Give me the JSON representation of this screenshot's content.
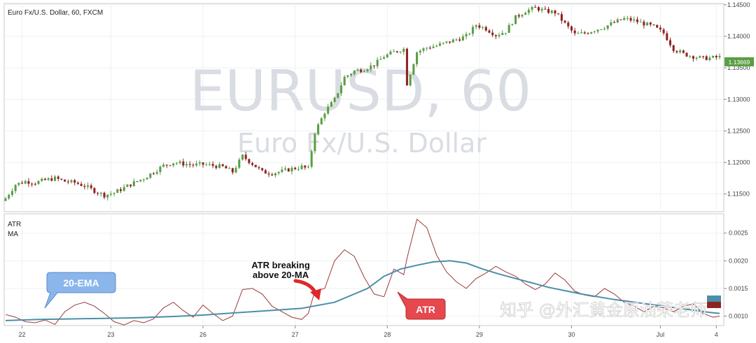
{
  "window": {
    "title": "Euro Fx/U.S. Dollar, 60, FXCM"
  },
  "watermark": {
    "line1": "EURUSD, 60",
    "line2": "Euro Fx/U.S. Dollar"
  },
  "overlay_text": "知乎 @外汇黄金原油荣老师",
  "colors": {
    "up_candle": "#5a9e44",
    "down_candle": "#8e2422",
    "atr_line": "#9b3a3a",
    "ema_line": "#4b8fa8",
    "price_badge": "#5a9e44",
    "callout_blue": "#8ab6ec",
    "callout_red": "#e5484d",
    "arrow_red": "#e0262a"
  },
  "price_badge": "1.13669",
  "callouts": {
    "ema": "20-EMA",
    "atr": "ATR",
    "breakout_line1": "ATR breaking",
    "breakout_line2": "above 20-MA"
  },
  "chart_data": [
    {
      "type": "candlestick",
      "title": "Euro Fx/U.S. Dollar, 60, FXCM",
      "y_ticks": [
        "1.14500",
        "1.14000",
        "1.13500",
        "1.13000",
        "1.12500",
        "1.12000",
        "1.11500"
      ],
      "ylim": [
        1.1122,
        1.1452
      ],
      "x_ticks": [
        "22",
        "23",
        "26",
        "27",
        "28",
        "29",
        "30",
        "Jul",
        "4"
      ],
      "grid": true,
      "close_path": [
        [
          0,
          1.1143
        ],
        [
          3,
          1.1165
        ],
        [
          6,
          1.117
        ],
        [
          9,
          1.1168
        ],
        [
          12,
          1.1172
        ],
        [
          15,
          1.1175
        ],
        [
          18,
          1.117
        ],
        [
          21,
          1.1168
        ],
        [
          24,
          1.1163
        ],
        [
          27,
          1.1155
        ],
        [
          30,
          1.1148
        ],
        [
          33,
          1.1152
        ],
        [
          36,
          1.116
        ],
        [
          39,
          1.1168
        ],
        [
          42,
          1.1175
        ],
        [
          45,
          1.1185
        ],
        [
          48,
          1.1195
        ],
        [
          51,
          1.12
        ],
        [
          54,
          1.1198
        ],
        [
          57,
          1.1196
        ],
        [
          60,
          1.1197
        ],
        [
          63,
          1.1195
        ],
        [
          66,
          1.1193
        ],
        [
          69,
          1.1185
        ],
        [
          72,
          1.121
        ],
        [
          75,
          1.1198
        ],
        [
          78,
          1.1185
        ],
        [
          81,
          1.1183
        ],
        [
          84,
          1.1186
        ],
        [
          87,
          1.119
        ],
        [
          90,
          1.1193
        ],
        [
          92,
          1.119
        ],
        [
          94,
          1.1248
        ],
        [
          97,
          1.128
        ],
        [
          100,
          1.13
        ],
        [
          103,
          1.1335
        ],
        [
          106,
          1.1345
        ],
        [
          109,
          1.1348
        ],
        [
          112,
          1.1355
        ],
        [
          115,
          1.1368
        ],
        [
          118,
          1.1375
        ],
        [
          121,
          1.138
        ],
        [
          122,
          1.1325
        ],
        [
          125,
          1.1375
        ],
        [
          128,
          1.1382
        ],
        [
          131,
          1.1385
        ],
        [
          134,
          1.139
        ],
        [
          137,
          1.1395
        ],
        [
          140,
          1.14
        ],
        [
          143,
          1.1418
        ],
        [
          146,
          1.1412
        ],
        [
          149,
          1.1402
        ],
        [
          152,
          1.1408
        ],
        [
          155,
          1.143
        ],
        [
          158,
          1.144
        ],
        [
          161,
          1.1445
        ],
        [
          164,
          1.144
        ],
        [
          167,
          1.1438
        ],
        [
          170,
          1.142
        ],
        [
          173,
          1.1403
        ],
        [
          176,
          1.1405
        ],
        [
          179,
          1.141
        ],
        [
          182,
          1.1415
        ],
        [
          185,
          1.1422
        ],
        [
          188,
          1.1428
        ],
        [
          191,
          1.1425
        ],
        [
          194,
          1.142
        ],
        [
          197,
          1.1415
        ],
        [
          200,
          1.1405
        ],
        [
          203,
          1.138
        ],
        [
          206,
          1.1372
        ],
        [
          209,
          1.1368
        ],
        [
          212,
          1.1365
        ],
        [
          215,
          1.1366
        ],
        [
          217,
          1.1367
        ]
      ]
    },
    {
      "type": "line",
      "title": "",
      "legend": [
        "ATR",
        "MA"
      ],
      "y_ticks": [
        "0.0025",
        "0.0020",
        "0.0015",
        "0.0010"
      ],
      "ylim": [
        0.00083,
        0.00285
      ],
      "series": [
        {
          "name": "ATR",
          "points": [
            [
              0,
              0.00103
            ],
            [
              3,
              0.00098
            ],
            [
              6,
              0.0009
            ],
            [
              9,
              0.00088
            ],
            [
              12,
              0.00093
            ],
            [
              15,
              0.00085
            ],
            [
              18,
              0.00108
            ],
            [
              21,
              0.0012
            ],
            [
              24,
              0.00125
            ],
            [
              27,
              0.00118
            ],
            [
              30,
              0.00105
            ],
            [
              33,
              0.0009
            ],
            [
              36,
              0.00084
            ],
            [
              39,
              0.00092
            ],
            [
              42,
              0.00088
            ],
            [
              45,
              0.00095
            ],
            [
              48,
              0.00115
            ],
            [
              51,
              0.00125
            ],
            [
              54,
              0.0011
            ],
            [
              57,
              0.00098
            ],
            [
              60,
              0.0012
            ],
            [
              63,
              0.00105
            ],
            [
              66,
              0.00092
            ],
            [
              69,
              0.001
            ],
            [
              72,
              0.00148
            ],
            [
              75,
              0.0015
            ],
            [
              78,
              0.0014
            ],
            [
              81,
              0.00118
            ],
            [
              84,
              0.00108
            ],
            [
              87,
              0.00098
            ],
            [
              90,
              0.00094
            ],
            [
              92,
              0.00105
            ],
            [
              94,
              0.00145
            ],
            [
              97,
              0.0015
            ],
            [
              100,
              0.002
            ],
            [
              103,
              0.0022
            ],
            [
              106,
              0.00208
            ],
            [
              109,
              0.0017
            ],
            [
              112,
              0.0014
            ],
            [
              115,
              0.00135
            ],
            [
              118,
              0.00185
            ],
            [
              121,
              0.00175
            ],
            [
              122,
              0.00205
            ],
            [
              125,
              0.00275
            ],
            [
              128,
              0.0026
            ],
            [
              131,
              0.0021
            ],
            [
              134,
              0.0018
            ],
            [
              137,
              0.00162
            ],
            [
              140,
              0.0015
            ],
            [
              143,
              0.00168
            ],
            [
              146,
              0.00178
            ],
            [
              149,
              0.0019
            ],
            [
              152,
              0.0018
            ],
            [
              155,
              0.00172
            ],
            [
              158,
              0.00158
            ],
            [
              161,
              0.00148
            ],
            [
              164,
              0.00158
            ],
            [
              167,
              0.00178
            ],
            [
              170,
              0.00165
            ],
            [
              173,
              0.00145
            ],
            [
              176,
              0.00138
            ],
            [
              179,
              0.00135
            ],
            [
              182,
              0.0015
            ],
            [
              185,
              0.0014
            ],
            [
              188,
              0.00125
            ],
            [
              191,
              0.00118
            ],
            [
              194,
              0.00108
            ],
            [
              197,
              0.00118
            ],
            [
              200,
              0.00115
            ],
            [
              203,
              0.00108
            ],
            [
              206,
              0.00118
            ],
            [
              209,
              0.00122
            ],
            [
              212,
              0.00105
            ],
            [
              215,
              0.00098
            ],
            [
              217,
              0.001
            ]
          ]
        },
        {
          "name": "MA",
          "points": [
            [
              0,
              0.00092
            ],
            [
              10,
              0.00094
            ],
            [
              20,
              0.00095
            ],
            [
              30,
              0.00096
            ],
            [
              40,
              0.00097
            ],
            [
              50,
              0.00099
            ],
            [
              60,
              0.00102
            ],
            [
              70,
              0.00106
            ],
            [
              80,
              0.0011
            ],
            [
              90,
              0.00114
            ],
            [
              100,
              0.00125
            ],
            [
              110,
              0.0015
            ],
            [
              115,
              0.00172
            ],
            [
              120,
              0.00185
            ],
            [
              125,
              0.00192
            ],
            [
              130,
              0.00198
            ],
            [
              135,
              0.002
            ],
            [
              140,
              0.00196
            ],
            [
              145,
              0.00185
            ],
            [
              150,
              0.00176
            ],
            [
              155,
              0.00168
            ],
            [
              160,
              0.0016
            ],
            [
              165,
              0.00152
            ],
            [
              170,
              0.00146
            ],
            [
              175,
              0.0014
            ],
            [
              180,
              0.00135
            ],
            [
              185,
              0.0013
            ],
            [
              190,
              0.00126
            ],
            [
              195,
              0.00122
            ],
            [
              200,
              0.00118
            ],
            [
              205,
              0.00114
            ],
            [
              210,
              0.0011
            ],
            [
              215,
              0.00106
            ],
            [
              217,
              0.00105
            ]
          ]
        }
      ]
    }
  ]
}
